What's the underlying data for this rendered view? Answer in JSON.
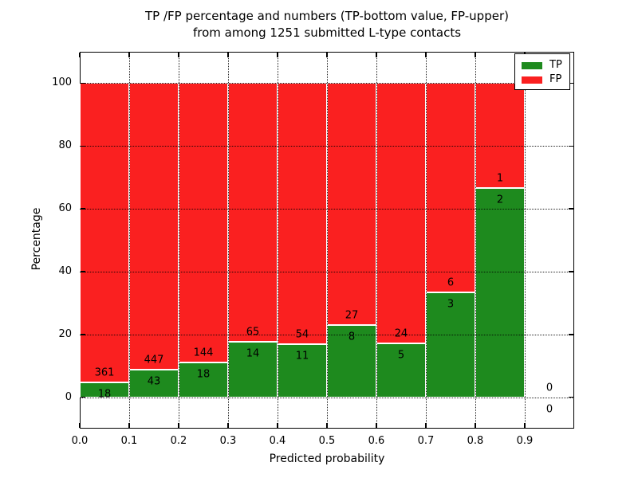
{
  "title": {
    "line1": "TP /FP percentage and numbers (TP-bottom value, FP-upper)",
    "line2": "from among 1251 submitted L-type contacts"
  },
  "axes": {
    "xlabel": "Predicted probability",
    "ylabel": "Percentage"
  },
  "legend": {
    "items": [
      {
        "label": "TP",
        "color": "#1e8a1e"
      },
      {
        "label": "FP",
        "color": "#fa2020"
      }
    ]
  },
  "chart_data": {
    "type": "bar",
    "stacked": true,
    "normalized_to_percent": true,
    "title": "TP /FP percentage and numbers (TP-bottom value, FP-upper)\nfrom among 1251 submitted L-type contacts",
    "xlabel": "Predicted probability",
    "ylabel": "Percentage",
    "total_submitted_contacts": 1251,
    "xlim": [
      0.0,
      1.0
    ],
    "ylim": [
      -10,
      110
    ],
    "xticks": [
      0.0,
      0.1,
      0.2,
      0.3,
      0.4,
      0.5,
      0.6,
      0.7,
      0.8,
      0.9
    ],
    "xtick_labels": [
      "0.0",
      "0.1",
      "0.2",
      "0.3",
      "0.4",
      "0.5",
      "0.6",
      "0.7",
      "0.8",
      "0.9"
    ],
    "yticks": [
      0,
      20,
      40,
      60,
      80,
      100
    ],
    "ytick_labels": [
      "0",
      "20",
      "40",
      "60",
      "80",
      "100"
    ],
    "grid": true,
    "legend_position": "upper right",
    "series": [
      {
        "name": "TP",
        "color": "#1e8a1e"
      },
      {
        "name": "FP",
        "color": "#fa2020"
      }
    ],
    "bins": [
      {
        "x_start": 0.0,
        "x_end": 0.1,
        "tp": 18,
        "fp": 361
      },
      {
        "x_start": 0.1,
        "x_end": 0.2,
        "tp": 43,
        "fp": 447
      },
      {
        "x_start": 0.2,
        "x_end": 0.3,
        "tp": 18,
        "fp": 144
      },
      {
        "x_start": 0.3,
        "x_end": 0.4,
        "tp": 14,
        "fp": 65
      },
      {
        "x_start": 0.4,
        "x_end": 0.5,
        "tp": 11,
        "fp": 54
      },
      {
        "x_start": 0.5,
        "x_end": 0.6,
        "tp": 8,
        "fp": 27
      },
      {
        "x_start": 0.6,
        "x_end": 0.7,
        "tp": 5,
        "fp": 24
      },
      {
        "x_start": 0.7,
        "x_end": 0.8,
        "tp": 3,
        "fp": 6
      },
      {
        "x_start": 0.8,
        "x_end": 0.9,
        "tp": 2,
        "fp": 1
      },
      {
        "x_start": 0.9,
        "x_end": 1.0,
        "tp": 0,
        "fp": 0
      }
    ]
  }
}
